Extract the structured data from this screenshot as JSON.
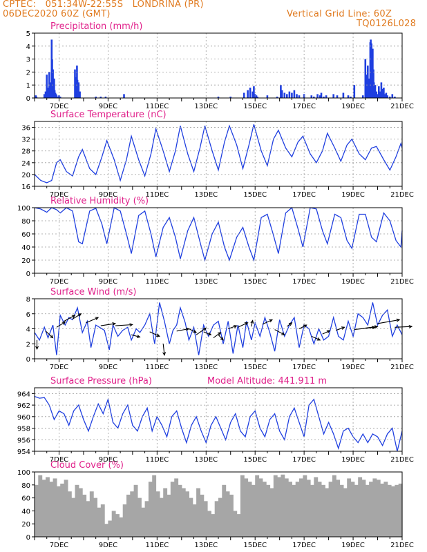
{
  "header": {
    "line1": "CPTEC:   051:34W-22:55S   LONDRINA (PR)",
    "line2": "06DEC2020 60Z (GMT)",
    "grid_note": "Vertical Grid Line: 60Z",
    "model": "TQ0126L028"
  },
  "colors": {
    "header": "#e07a1f",
    "title": "#e0208a",
    "line": "#1f3fe0",
    "bar": "#1f3fe0",
    "cloud": "#a6a6a6",
    "arrow": "#000000",
    "grid": "#9a9a9a"
  },
  "x_axis": {
    "labels": [
      "7DEC",
      "9DEC",
      "11DEC",
      "13DEC",
      "15DEC",
      "17DEC",
      "19DEC",
      "21DEC"
    ],
    "label_days": [
      7,
      9,
      11,
      13,
      15,
      17,
      19,
      21
    ],
    "start_day": 6.0,
    "end_day": 21.0
  },
  "chart_data": [
    {
      "type": "bar",
      "title": "Precipitation (mm/h)",
      "ylim": [
        0,
        5
      ],
      "yticks": [
        0,
        1,
        2,
        3,
        4,
        5
      ],
      "grid": true,
      "x": [
        6.05,
        6.08,
        6.4,
        6.45,
        6.5,
        6.55,
        6.6,
        6.65,
        6.7,
        6.72,
        6.75,
        6.78,
        6.8,
        6.82,
        6.85,
        6.88,
        6.9,
        6.95,
        7.0,
        7.05,
        7.65,
        7.7,
        7.73,
        7.75,
        7.78,
        7.8,
        7.85,
        8.5,
        8.7,
        8.9,
        9.65,
        13.5,
        14.0,
        14.55,
        14.7,
        14.8,
        14.9,
        14.95,
        15.0,
        15.05,
        15.1,
        15.5,
        15.9,
        16.05,
        16.1,
        16.2,
        16.3,
        16.4,
        16.5,
        16.6,
        16.7,
        16.8,
        17.0,
        17.3,
        17.4,
        17.55,
        17.65,
        17.7,
        17.8,
        17.9,
        18.2,
        18.35,
        18.6,
        18.8,
        18.9,
        19.05,
        19.4,
        19.5,
        19.55,
        19.6,
        19.65,
        19.7,
        19.72,
        19.75,
        19.8,
        19.83,
        19.85,
        19.88,
        19.9,
        19.95,
        20.0,
        20.05,
        20.1,
        20.15,
        20.2,
        20.25,
        20.3,
        20.35,
        20.4,
        20.5,
        20.6,
        20.7
      ],
      "values": [
        0.2,
        0.1,
        0.3,
        0.5,
        1.8,
        0.8,
        2.0,
        1.2,
        4.5,
        3.0,
        2.2,
        1.0,
        1.5,
        0.6,
        0.4,
        0.3,
        0.2,
        0.1,
        0.2,
        0.1,
        2.2,
        1.6,
        2.5,
        1.4,
        0.9,
        1.2,
        0.5,
        0.1,
        0.1,
        0.1,
        0.3,
        0.1,
        0.1,
        0.4,
        0.6,
        0.8,
        0.5,
        0.9,
        0.3,
        0.2,
        0.1,
        0.2,
        0.1,
        1.0,
        0.6,
        0.4,
        0.3,
        0.5,
        0.4,
        0.6,
        0.3,
        0.2,
        0.3,
        0.2,
        0.1,
        0.3,
        0.2,
        0.4,
        0.1,
        0.2,
        0.3,
        0.2,
        0.4,
        0.2,
        0.1,
        1.0,
        0.2,
        3.0,
        1.8,
        2.5,
        1.5,
        4.3,
        4.5,
        4.2,
        3.8,
        2.2,
        1.2,
        0.8,
        1.0,
        0.5,
        0.3,
        0.9,
        0.5,
        1.2,
        0.7,
        0.8,
        0.3,
        0.4,
        0.2,
        0.1,
        0.3,
        0.1
      ]
    },
    {
      "type": "line",
      "title": "Surface Temperature (nC)",
      "ylim": [
        16,
        38
      ],
      "yticks": [
        16,
        20,
        24,
        28,
        32,
        36
      ],
      "grid": true,
      "x": [
        6.0,
        6.25,
        6.5,
        6.7,
        6.9,
        7.05,
        7.3,
        7.55,
        7.8,
        7.95,
        8.25,
        8.5,
        8.75,
        8.95,
        9.25,
        9.5,
        9.75,
        9.95,
        10.25,
        10.5,
        10.75,
        10.95,
        11.25,
        11.5,
        11.75,
        11.95,
        12.25,
        12.5,
        12.75,
        12.95,
        13.25,
        13.5,
        13.75,
        13.95,
        14.25,
        14.5,
        14.75,
        14.95,
        15.25,
        15.5,
        15.75,
        15.95,
        16.25,
        16.5,
        16.75,
        16.95,
        17.25,
        17.5,
        17.75,
        17.95,
        18.25,
        18.5,
        18.75,
        18.95,
        19.25,
        19.5,
        19.75,
        19.95,
        20.25,
        20.5,
        20.75,
        20.95,
        21.0
      ],
      "values": [
        20,
        18,
        17.2,
        18,
        24,
        25,
        21,
        19.5,
        26,
        28.5,
        22,
        20,
        26,
        31.5,
        25,
        18,
        25,
        33,
        25,
        19.5,
        27,
        35.5,
        28,
        21,
        28,
        36.5,
        27,
        21,
        29,
        36.5,
        28,
        21.5,
        31,
        36.5,
        30,
        22,
        30,
        37,
        28,
        23,
        32,
        35,
        29,
        26,
        31,
        33,
        27,
        24,
        28,
        34,
        29,
        24.5,
        30,
        32,
        27,
        25,
        29,
        29.5,
        25,
        21.5,
        26,
        30.5,
        29
      ]
    },
    {
      "type": "line",
      "title": "Relative Humidity (%)",
      "ylim": [
        0,
        100
      ],
      "yticks": [
        0,
        20,
        40,
        60,
        80,
        100
      ],
      "grid": true,
      "x": [
        6.0,
        6.25,
        6.5,
        6.7,
        6.9,
        7.05,
        7.3,
        7.55,
        7.8,
        7.95,
        8.25,
        8.5,
        8.75,
        8.95,
        9.25,
        9.5,
        9.75,
        9.95,
        10.25,
        10.5,
        10.75,
        10.95,
        11.25,
        11.5,
        11.75,
        11.95,
        12.25,
        12.5,
        12.75,
        12.95,
        13.25,
        13.5,
        13.75,
        13.95,
        14.25,
        14.5,
        14.75,
        14.95,
        15.25,
        15.5,
        15.75,
        15.95,
        16.25,
        16.5,
        16.75,
        16.95,
        17.25,
        17.5,
        17.75,
        17.95,
        18.25,
        18.5,
        18.75,
        18.95,
        19.25,
        19.5,
        19.75,
        19.95,
        20.25,
        20.5,
        20.75,
        20.95,
        21.0
      ],
      "values": [
        100,
        98,
        93,
        100,
        97,
        92,
        100,
        95,
        48,
        45,
        95,
        99,
        75,
        45,
        100,
        95,
        60,
        30,
        88,
        95,
        60,
        25,
        70,
        85,
        55,
        22,
        65,
        85,
        48,
        20,
        60,
        78,
        40,
        20,
        55,
        70,
        40,
        20,
        85,
        90,
        58,
        30,
        92,
        100,
        68,
        40,
        100,
        98,
        65,
        45,
        90,
        85,
        50,
        38,
        90,
        90,
        55,
        48,
        92,
        80,
        50,
        40,
        65
      ]
    },
    {
      "type": "line",
      "title": "Surface Wind (m/s)",
      "ylim": [
        0,
        8
      ],
      "yticks": [
        0,
        2,
        4,
        6,
        8
      ],
      "grid": true,
      "x": [
        6.0,
        6.2,
        6.4,
        6.55,
        6.75,
        6.9,
        7.05,
        7.25,
        7.4,
        7.55,
        7.75,
        7.95,
        8.15,
        8.3,
        8.5,
        8.65,
        8.85,
        9.05,
        9.2,
        9.4,
        9.6,
        9.8,
        9.95,
        10.15,
        10.3,
        10.5,
        10.7,
        10.9,
        11.1,
        11.3,
        11.5,
        11.65,
        11.8,
        11.95,
        12.15,
        12.3,
        12.5,
        12.7,
        12.9,
        13.1,
        13.3,
        13.5,
        13.7,
        13.9,
        14.1,
        14.3,
        14.5,
        14.65,
        14.85,
        15.0,
        15.2,
        15.4,
        15.6,
        15.8,
        16.0,
        16.2,
        16.4,
        16.6,
        16.8,
        17.0,
        17.2,
        17.4,
        17.6,
        17.8,
        18.0,
        18.2,
        18.4,
        18.6,
        18.8,
        19.0,
        19.2,
        19.4,
        19.6,
        19.8,
        20.0,
        20.2,
        20.4,
        20.6,
        20.8,
        21.0
      ],
      "values": [
        3.5,
        2.5,
        4.2,
        2.8,
        4.5,
        0.5,
        5.8,
        4.5,
        5.5,
        5.2,
        6.8,
        3.5,
        5.0,
        1.5,
        4.5,
        4.2,
        3.8,
        1.2,
        4.5,
        3.0,
        3.8,
        4.2,
        2.5,
        4.0,
        3.5,
        4.5,
        6.0,
        2.0,
        7.5,
        5.0,
        2.0,
        3.8,
        4.5,
        6.8,
        4.8,
        2.5,
        4.2,
        0.5,
        4.5,
        3.0,
        4.5,
        5.0,
        2.0,
        5.0,
        0.7,
        4.5,
        1.5,
        5.0,
        2.5,
        4.8,
        3.0,
        5.5,
        3.5,
        1.0,
        5.2,
        3.0,
        4.5,
        5.5,
        1.5,
        4.5,
        4.0,
        2.0,
        4.0,
        2.5,
        3.0,
        5.5,
        3.0,
        2.5,
        5.0,
        3.0,
        6.0,
        5.5,
        4.5,
        7.5,
        4.5,
        5.8,
        6.5,
        3.0,
        4.5,
        3.2
      ],
      "arrows": [
        {
          "x": 6.1,
          "y": 2.5,
          "dx": 0.0,
          "dy": -1.2
        },
        {
          "x": 6.45,
          "y": 3.7,
          "dx": 0.3,
          "dy": -0.9
        },
        {
          "x": 6.9,
          "y": 4.2,
          "dx": 0.35,
          "dy": 0.7
        },
        {
          "x": 7.2,
          "y": 5.0,
          "dx": 0.45,
          "dy": 0.8
        },
        {
          "x": 7.55,
          "y": 5.3,
          "dx": 0.35,
          "dy": 0.7
        },
        {
          "x": 8.1,
          "y": 4.8,
          "dx": 0.5,
          "dy": 0.7
        },
        {
          "x": 8.7,
          "y": 4.4,
          "dx": 0.6,
          "dy": 0.3
        },
        {
          "x": 9.3,
          "y": 4.4,
          "dx": 0.7,
          "dy": 0.15
        },
        {
          "x": 9.95,
          "y": 3.2,
          "dx": 0.35,
          "dy": -0.3
        },
        {
          "x": 10.7,
          "y": 3.6,
          "dx": 0.4,
          "dy": -0.6
        },
        {
          "x": 11.25,
          "y": 2.0,
          "dx": 0.05,
          "dy": -1.5
        },
        {
          "x": 11.8,
          "y": 3.7,
          "dx": 0.5,
          "dy": 0.3
        },
        {
          "x": 12.3,
          "y": 4.0,
          "dx": 0.3,
          "dy": -0.5
        },
        {
          "x": 12.6,
          "y": 3.2,
          "dx": 0.4,
          "dy": 0.9
        },
        {
          "x": 12.9,
          "y": 3.6,
          "dx": 0.3,
          "dy": -0.4
        },
        {
          "x": 13.3,
          "y": 2.8,
          "dx": 0.3,
          "dy": 0.7
        },
        {
          "x": 13.5,
          "y": 3.2,
          "dx": 0.2,
          "dy": -0.7
        },
        {
          "x": 13.9,
          "y": 4.0,
          "dx": 0.35,
          "dy": 0.4
        },
        {
          "x": 14.3,
          "y": 4.2,
          "dx": 0.4,
          "dy": 0.6
        },
        {
          "x": 14.85,
          "y": 4.3,
          "dx": 0.05,
          "dy": 0.8
        },
        {
          "x": 15.3,
          "y": 4.6,
          "dx": 0.4,
          "dy": 0.6
        },
        {
          "x": 15.8,
          "y": 3.9,
          "dx": 0.4,
          "dy": -0.7
        },
        {
          "x": 16.3,
          "y": 4.3,
          "dx": 0.2,
          "dy": 0.5
        },
        {
          "x": 16.8,
          "y": 4.0,
          "dx": 0.3,
          "dy": 0.5
        },
        {
          "x": 17.3,
          "y": 3.0,
          "dx": 0.35,
          "dy": -0.5
        },
        {
          "x": 17.75,
          "y": 3.3,
          "dx": 0.3,
          "dy": 0.45
        },
        {
          "x": 18.3,
          "y": 3.8,
          "dx": 0.35,
          "dy": 0.4
        },
        {
          "x": 19.05,
          "y": 3.9,
          "dx": 0.85,
          "dy": 0.3
        },
        {
          "x": 19.5,
          "y": 4.1,
          "dx": 0.5,
          "dy": 0.2
        },
        {
          "x": 20.0,
          "y": 4.7,
          "dx": 0.9,
          "dy": 0.5
        },
        {
          "x": 20.7,
          "y": 4.2,
          "dx": 0.7,
          "dy": 0.1
        }
      ]
    },
    {
      "type": "line",
      "title": "Surface Pressure (hPa)",
      "subtitle": "Model Altitude: 441.911 m",
      "ylim": [
        954,
        965
      ],
      "yticks": [
        954,
        956,
        958,
        960,
        962,
        964
      ],
      "grid": true,
      "x": [
        6.0,
        6.2,
        6.4,
        6.6,
        6.8,
        7.0,
        7.2,
        7.4,
        7.6,
        7.8,
        8.0,
        8.2,
        8.4,
        8.6,
        8.8,
        9.0,
        9.2,
        9.4,
        9.6,
        9.8,
        10.0,
        10.2,
        10.4,
        10.6,
        10.8,
        11.0,
        11.2,
        11.4,
        11.6,
        11.8,
        12.0,
        12.2,
        12.4,
        12.6,
        12.8,
        13.0,
        13.2,
        13.4,
        13.6,
        13.8,
        14.0,
        14.2,
        14.4,
        14.6,
        14.8,
        15.0,
        15.2,
        15.4,
        15.6,
        15.8,
        16.0,
        16.2,
        16.4,
        16.6,
        16.8,
        17.0,
        17.2,
        17.4,
        17.6,
        17.8,
        18.0,
        18.2,
        18.4,
        18.6,
        18.8,
        19.0,
        19.2,
        19.4,
        19.6,
        19.8,
        20.0,
        20.2,
        20.4,
        20.6,
        20.8,
        21.0
      ],
      "values": [
        963.5,
        963.2,
        963.3,
        962,
        959.5,
        961,
        960.5,
        958.5,
        961,
        962,
        959.5,
        957.5,
        960,
        962.2,
        960.5,
        963,
        959,
        958,
        960.5,
        962,
        958.5,
        957.5,
        960,
        961.5,
        957.5,
        960,
        958.5,
        956.5,
        960,
        961,
        958,
        955.5,
        958.5,
        960,
        957.5,
        955.5,
        958.5,
        960,
        958,
        956,
        959,
        960.5,
        957.5,
        956.5,
        960,
        961,
        958,
        956.5,
        959.5,
        960.5,
        957.5,
        956,
        960,
        961.5,
        959,
        956.5,
        962,
        963,
        960,
        957,
        959,
        957,
        954.5,
        957.5,
        958,
        956.5,
        955.5,
        957,
        955.5,
        957,
        956.5,
        955,
        957,
        958,
        954,
        957.5
      ]
    },
    {
      "type": "bar",
      "title": "Cloud Cover (%)",
      "ylim": [
        0,
        100
      ],
      "yticks": [
        0,
        20,
        40,
        60,
        80,
        100
      ],
      "grid": false,
      "x": [
        6.0,
        6.15,
        6.3,
        6.45,
        6.6,
        6.75,
        6.9,
        7.05,
        7.2,
        7.35,
        7.5,
        7.65,
        7.8,
        7.95,
        8.1,
        8.25,
        8.4,
        8.55,
        8.7,
        8.85,
        9.0,
        9.15,
        9.3,
        9.45,
        9.6,
        9.75,
        9.9,
        10.05,
        10.2,
        10.35,
        10.5,
        10.65,
        10.8,
        10.95,
        11.1,
        11.25,
        11.4,
        11.55,
        11.7,
        11.85,
        12.0,
        12.15,
        12.3,
        12.45,
        12.6,
        12.75,
        12.9,
        13.05,
        13.2,
        13.35,
        13.5,
        13.65,
        13.8,
        13.95,
        14.1,
        14.25,
        14.4,
        14.55,
        14.7,
        14.85,
        15.0,
        15.15,
        15.3,
        15.45,
        15.6,
        15.75,
        15.9,
        16.05,
        16.2,
        16.35,
        16.5,
        16.65,
        16.8,
        16.95,
        17.1,
        17.25,
        17.4,
        17.55,
        17.7,
        17.85,
        18.0,
        18.15,
        18.3,
        18.45,
        18.6,
        18.75,
        18.9,
        19.05,
        19.2,
        19.35,
        19.5,
        19.65,
        19.8,
        19.95,
        20.1,
        20.25,
        20.4,
        20.55,
        20.7,
        20.85
      ],
      "values": [
        80,
        95,
        88,
        92,
        85,
        90,
        78,
        82,
        88,
        70,
        60,
        80,
        75,
        65,
        55,
        70,
        60,
        45,
        50,
        20,
        25,
        40,
        35,
        30,
        50,
        65,
        70,
        80,
        60,
        45,
        55,
        85,
        95,
        70,
        60,
        75,
        65,
        85,
        90,
        80,
        75,
        70,
        60,
        50,
        75,
        65,
        55,
        40,
        35,
        55,
        60,
        80,
        70,
        65,
        40,
        35,
        95,
        90,
        85,
        80,
        95,
        90,
        85,
        80,
        75,
        95,
        92,
        96,
        90,
        85,
        80,
        85,
        90,
        95,
        88,
        80,
        92,
        85,
        80,
        75,
        85,
        95,
        88,
        80,
        75,
        90,
        85,
        80,
        92,
        88,
        80,
        85,
        90,
        88,
        82,
        85,
        80,
        78,
        80,
        82
      ]
    }
  ]
}
